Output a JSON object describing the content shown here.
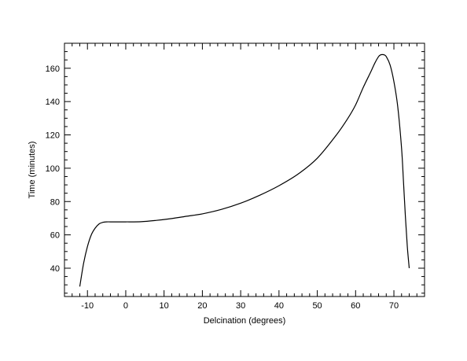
{
  "chart_data": {
    "type": "line",
    "title": "",
    "xlabel": "Delcination (degrees)",
    "ylabel": "Time (minutes)",
    "xlim": [
      -16,
      78
    ],
    "ylim": [
      23,
      175
    ],
    "grid": false,
    "legend": "none",
    "x_ticks": [
      -10,
      0,
      10,
      20,
      30,
      40,
      50,
      60,
      70
    ],
    "y_ticks": [
      40,
      60,
      80,
      100,
      120,
      140,
      160
    ],
    "line_color": "#000000",
    "series": [
      {
        "x": [
          -12,
          -11,
          -10,
          -9,
          -8,
          -7,
          -6,
          -5,
          -4,
          -2,
          0,
          4,
          8,
          12,
          16,
          20,
          25,
          30,
          35,
          40,
          45,
          50,
          55,
          58,
          60,
          62,
          64,
          65,
          66,
          66.5,
          67,
          67.5,
          68,
          69,
          70,
          71,
          72,
          72.5,
          73,
          73.5,
          74
        ],
        "y": [
          29,
          43,
          53,
          60,
          64,
          66.5,
          67.5,
          67.8,
          67.8,
          67.8,
          67.8,
          67.9,
          68.7,
          69.8,
          71.2,
          72.6,
          75.3,
          79.0,
          83.8,
          89.5,
          96.5,
          106,
          120,
          130,
          138,
          148.5,
          158,
          163,
          167,
          168,
          168.2,
          168,
          167,
          162,
          152,
          137,
          112,
          92,
          71,
          53,
          40
        ]
      }
    ]
  }
}
